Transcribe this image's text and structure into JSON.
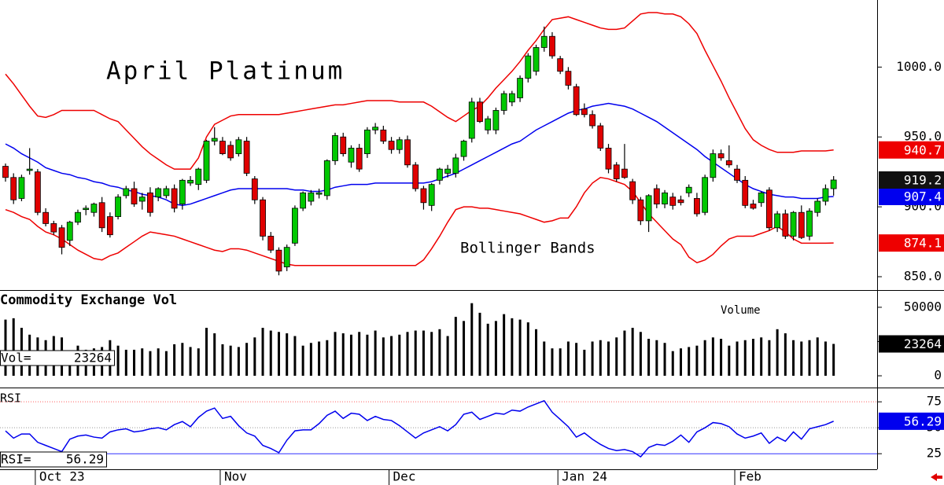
{
  "chart_data": [
    {
      "type": "candlestick",
      "title": "April Platinum",
      "annotation": "Bollinger Bands",
      "categories": [
        null,
        null,
        null,
        null,
        "Oct 23",
        null,
        null,
        null,
        null,
        null,
        null,
        null,
        null,
        null,
        null,
        null,
        null,
        null,
        null,
        null,
        null,
        null,
        null,
        null,
        null,
        null,
        null,
        "Nov",
        null,
        null,
        null,
        null,
        null,
        null,
        null,
        null,
        null,
        null,
        null,
        null,
        null,
        null,
        null,
        null,
        null,
        null,
        null,
        null,
        "Dec",
        null,
        null,
        null,
        null,
        null,
        null,
        null,
        null,
        null,
        null,
        null,
        null,
        null,
        null,
        null,
        null,
        null,
        null,
        null,
        null,
        "Jan 24",
        null,
        null,
        null,
        null,
        null,
        null,
        null,
        null,
        null,
        null,
        null,
        null,
        null,
        null,
        null,
        null,
        null,
        null,
        null,
        null,
        null,
        "Feb",
        null,
        null,
        null,
        null,
        null,
        null,
        null,
        null,
        null,
        null,
        null,
        null
      ],
      "ohlc": [
        [
          929,
          931,
          918,
          921
        ],
        [
          921,
          924,
          902,
          905
        ],
        [
          906,
          923,
          904,
          921
        ],
        [
          926,
          942,
          923,
          927
        ],
        [
          925,
          927,
          894,
          896
        ],
        [
          896,
          899,
          886,
          888
        ],
        [
          888,
          890,
          880,
          882
        ],
        [
          885,
          887,
          866,
          871
        ],
        [
          876,
          890,
          872,
          889
        ],
        [
          889,
          898,
          887,
          896
        ],
        [
          898,
          901,
          894,
          899
        ],
        [
          896,
          903,
          893,
          902
        ],
        [
          903,
          907,
          882,
          885
        ],
        [
          893,
          896,
          878,
          880
        ],
        [
          893,
          909,
          891,
          907
        ],
        [
          908,
          915,
          906,
          913
        ],
        [
          913,
          918,
          900,
          902
        ],
        [
          904,
          910,
          898,
          907
        ],
        [
          910,
          914,
          893,
          896
        ],
        [
          907,
          914,
          904,
          913
        ],
        [
          908,
          915,
          906,
          913
        ],
        [
          913,
          916,
          896,
          899
        ],
        [
          902,
          920,
          898,
          919
        ],
        [
          917,
          922,
          915,
          919
        ],
        [
          916,
          928,
          912,
          927
        ],
        [
          919,
          948,
          917,
          947
        ],
        [
          947,
          957,
          944,
          949
        ],
        [
          947,
          950,
          937,
          938
        ],
        [
          944,
          947,
          933,
          935
        ],
        [
          938,
          950,
          936,
          948
        ],
        [
          947,
          950,
          922,
          924
        ],
        [
          920,
          922,
          902,
          905
        ],
        [
          905,
          907,
          876,
          879
        ],
        [
          879,
          882,
          867,
          869
        ],
        [
          869,
          871,
          851,
          854
        ],
        [
          857,
          873,
          854,
          871
        ],
        [
          874,
          901,
          872,
          899
        ],
        [
          899,
          911,
          897,
          910
        ],
        [
          904,
          912,
          901,
          910
        ],
        [
          909,
          913,
          906,
          910
        ],
        [
          908,
          934,
          905,
          933
        ],
        [
          933,
          953,
          930,
          951
        ],
        [
          950,
          953,
          936,
          938
        ],
        [
          932,
          944,
          928,
          942
        ],
        [
          942,
          945,
          925,
          927
        ],
        [
          938,
          957,
          935,
          955
        ],
        [
          955,
          960,
          952,
          957
        ],
        [
          955,
          958,
          945,
          947
        ],
        [
          947,
          950,
          938,
          941
        ],
        [
          941,
          950,
          938,
          948
        ],
        [
          948,
          951,
          928,
          930
        ],
        [
          930,
          932,
          911,
          913
        ],
        [
          913,
          915,
          898,
          903
        ],
        [
          901,
          917,
          897,
          916
        ],
        [
          919,
          928,
          916,
          927
        ],
        [
          924,
          930,
          921,
          927
        ],
        [
          924,
          938,
          921,
          935
        ],
        [
          936,
          948,
          933,
          947
        ],
        [
          949,
          978,
          946,
          975
        ],
        [
          975,
          978,
          960,
          961
        ],
        [
          955,
          965,
          952,
          963
        ],
        [
          955,
          971,
          952,
          969
        ],
        [
          969,
          983,
          966,
          981
        ],
        [
          975,
          983,
          972,
          981
        ],
        [
          978,
          994,
          975,
          992
        ],
        [
          992,
          1010,
          989,
          1008
        ],
        [
          997,
          1016,
          994,
          1014
        ],
        [
          1014,
          1029,
          1011,
          1022
        ],
        [
          1022,
          1025,
          1006,
          1008
        ],
        [
          1006,
          1008,
          995,
          997
        ],
        [
          997,
          1000,
          984,
          987
        ],
        [
          986,
          988,
          965,
          966
        ],
        [
          970,
          974,
          964,
          966
        ],
        [
          966,
          969,
          956,
          958
        ],
        [
          958,
          960,
          940,
          942
        ],
        [
          942,
          945,
          924,
          927
        ],
        [
          930,
          932,
          918,
          920
        ],
        [
          927,
          945,
          920,
          921
        ],
        [
          918,
          920,
          902,
          905
        ],
        [
          905,
          907,
          887,
          890
        ],
        [
          890,
          909,
          882,
          908
        ],
        [
          913,
          916,
          899,
          902
        ],
        [
          902,
          912,
          899,
          910
        ],
        [
          907,
          910,
          898,
          901
        ],
        [
          905,
          908,
          901,
          903
        ],
        [
          910,
          916,
          907,
          914
        ],
        [
          906,
          910,
          893,
          895
        ],
        [
          896,
          923,
          894,
          921
        ],
        [
          921,
          941,
          918,
          938
        ],
        [
          938,
          941,
          933,
          935
        ],
        [
          933,
          944,
          928,
          930
        ],
        [
          927,
          930,
          917,
          919
        ],
        [
          919,
          922,
          899,
          901
        ],
        [
          902,
          905,
          898,
          899
        ],
        [
          903,
          911,
          900,
          910
        ],
        [
          912,
          914,
          883,
          885
        ],
        [
          885,
          897,
          882,
          895
        ],
        [
          895,
          898,
          877,
          879
        ],
        [
          879,
          897,
          876,
          896
        ],
        [
          896,
          901,
          877,
          878
        ],
        [
          879,
          899,
          876,
          897
        ],
        [
          896,
          906,
          893,
          904
        ],
        [
          904,
          916,
          901,
          913
        ],
        [
          913,
          922,
          908,
          919.2
        ]
      ],
      "up_color": "#00c800",
      "down_color": "#e00000",
      "last_value_color": "#111111",
      "upper_band": {
        "color": "#ee0000",
        "values": [
          995,
          988,
          980,
          972,
          965,
          964,
          966,
          969,
          969,
          969,
          969,
          969,
          966,
          963,
          961,
          955,
          949,
          943,
          938,
          934,
          930,
          927,
          927,
          927,
          935,
          950,
          959,
          962,
          965,
          966,
          966,
          966,
          966,
          966,
          966,
          967,
          968,
          969,
          970,
          971,
          972,
          973,
          973,
          974,
          975,
          976,
          976,
          976,
          976,
          975,
          975,
          975,
          975,
          972,
          968,
          964,
          961,
          965,
          969,
          972,
          978,
          985,
          991,
          997,
          1004,
          1012,
          1019,
          1027,
          1034,
          1035,
          1036,
          1034,
          1032,
          1030,
          1028,
          1027,
          1027,
          1028,
          1033,
          1038,
          1039,
          1039,
          1038,
          1038,
          1036,
          1031,
          1024,
          1012,
          1001,
          990,
          978,
          967,
          956,
          948,
          944,
          941,
          939,
          939,
          939,
          940,
          940,
          940,
          940,
          940.7
        ]
      },
      "middle_band": {
        "color": "#0000ee",
        "values": [
          945,
          942,
          938,
          935,
          932,
          928,
          926,
          924,
          923,
          921,
          920,
          918,
          917,
          915,
          914,
          912,
          911,
          909,
          908,
          907,
          905,
          902,
          901,
          902,
          904,
          906,
          908,
          910,
          912,
          913,
          913,
          913,
          913,
          913,
          913,
          913,
          912,
          912,
          911,
          911,
          912,
          914,
          915,
          916,
          916,
          916,
          917,
          917,
          917,
          917,
          917,
          917,
          917,
          918,
          920,
          922,
          924,
          927,
          930,
          933,
          936,
          939,
          942,
          945,
          947,
          951,
          955,
          958,
          961,
          964,
          967,
          969,
          970,
          972,
          973,
          974,
          973,
          972,
          970,
          967,
          964,
          961,
          957,
          953,
          949,
          945,
          941,
          936,
          932,
          928,
          924,
          920,
          916,
          913,
          911,
          909,
          908,
          907,
          907,
          906,
          906,
          906,
          907,
          907.4
        ]
      },
      "lower_band": {
        "color": "#ee0000",
        "values": [
          898,
          896,
          893,
          891,
          886,
          882,
          880,
          877,
          873,
          869,
          866,
          863,
          862,
          865,
          867,
          871,
          875,
          879,
          882,
          881,
          880,
          879,
          877,
          875,
          873,
          871,
          869,
          868,
          870,
          870,
          869,
          867,
          865,
          863,
          861,
          859,
          858,
          858,
          858,
          858,
          858,
          858,
          858,
          858,
          858,
          858,
          858,
          858,
          858,
          858,
          858,
          858,
          862,
          870,
          879,
          889,
          898,
          900,
          900,
          899,
          899,
          898,
          897,
          896,
          895,
          893,
          891,
          889,
          890,
          892,
          892,
          900,
          910,
          917,
          921,
          920,
          918,
          916,
          911,
          903,
          895,
          889,
          883,
          877,
          873,
          864,
          860,
          862,
          866,
          872,
          877,
          879,
          879,
          879,
          881,
          883,
          886,
          882,
          877,
          874,
          874,
          874,
          874,
          874.1
        ]
      },
      "ylim": [
        841,
        1048
      ],
      "yticks": [
        {
          "value": 850,
          "label": "850.0"
        },
        {
          "value": 900,
          "label": "900.0"
        },
        {
          "value": 950,
          "label": "950.0"
        },
        {
          "value": 1000,
          "label": "1000.0"
        }
      ]
    },
    {
      "type": "bar",
      "title": "Commodity Exchange Vol",
      "annotation": "Volume",
      "value_label": "Vol=",
      "color": "#000000",
      "values": [
        41000,
        42000,
        35000,
        30000,
        28000,
        26000,
        29000,
        28000,
        18000,
        22000,
        19000,
        20000,
        21000,
        26000,
        22000,
        19000,
        19000,
        20000,
        18000,
        20000,
        18000,
        23000,
        24000,
        21000,
        20000,
        35000,
        31000,
        23000,
        22000,
        21000,
        24000,
        28000,
        35000,
        33000,
        32000,
        31000,
        29000,
        22000,
        24000,
        25000,
        26000,
        32000,
        31000,
        30000,
        32000,
        30000,
        33000,
        28000,
        29000,
        30000,
        32000,
        33000,
        33000,
        32000,
        34000,
        29000,
        43000,
        40000,
        53000,
        46000,
        38000,
        40000,
        45000,
        42000,
        41000,
        39000,
        34000,
        25000,
        20000,
        20000,
        25000,
        24000,
        19000,
        25000,
        26000,
        25000,
        28000,
        33000,
        35000,
        32000,
        27000,
        26000,
        24000,
        18000,
        20000,
        21000,
        22000,
        26000,
        28000,
        27000,
        22000,
        25000,
        26000,
        27000,
        28000,
        26000,
        34000,
        31000,
        26000,
        25000,
        26000,
        28000,
        25000,
        23264
      ],
      "ylim": [
        -8000,
        62000
      ],
      "yticks": [
        0,
        25000,
        50000
      ]
    },
    {
      "type": "line",
      "title": "RSI",
      "value_label": "RSI=",
      "color": "#0000ee",
      "values": [
        47,
        40,
        44,
        44,
        36,
        33,
        30,
        27,
        39,
        42,
        43,
        41,
        40,
        46,
        48,
        49,
        46,
        47,
        49,
        50,
        48,
        53,
        56,
        51,
        60,
        66,
        69,
        59,
        61,
        52,
        45,
        42,
        33,
        30,
        26,
        38,
        47,
        48,
        48,
        54,
        62,
        66,
        59,
        64,
        63,
        57,
        61,
        58,
        57,
        52,
        46,
        40,
        45,
        48,
        51,
        47,
        53,
        63,
        65,
        58,
        61,
        64,
        63,
        67,
        66,
        70,
        73,
        76,
        65,
        58,
        51,
        41,
        45,
        39,
        34,
        30,
        28,
        29,
        27,
        22,
        31,
        34,
        33,
        37,
        43,
        36,
        46,
        50,
        55,
        54,
        51,
        44,
        40,
        42,
        45,
        35,
        41,
        37,
        46,
        39,
        49,
        51,
        53,
        56.29
      ],
      "ylim": [
        10,
        88
      ],
      "yticks": [
        25,
        50,
        75
      ],
      "grid": true,
      "grid_colors": [
        "#3030ff",
        "#999999",
        "#ff6060"
      ]
    }
  ]
}
